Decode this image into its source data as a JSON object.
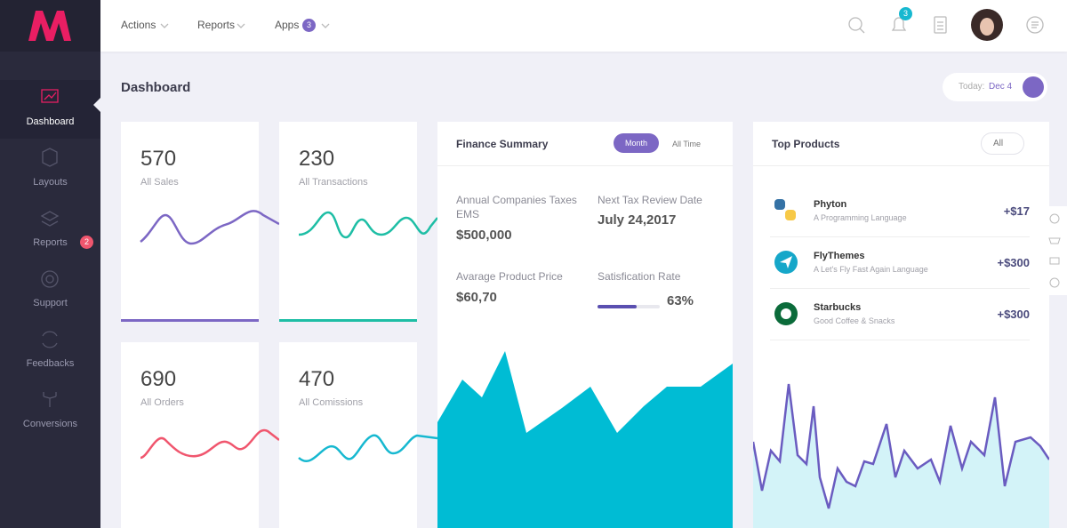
{
  "sidebar": {
    "items": [
      {
        "label": "Dashboard"
      },
      {
        "label": "Layouts"
      },
      {
        "label": "Reports",
        "badge": "2"
      },
      {
        "label": "Support"
      },
      {
        "label": "Feedbacks"
      },
      {
        "label": "Conversions"
      }
    ]
  },
  "topbar": {
    "menu": [
      {
        "label": "Actions"
      },
      {
        "label": "Reports"
      },
      {
        "label": "Apps",
        "badge": "3"
      }
    ],
    "notifications": "3"
  },
  "page": {
    "title": "Dashboard",
    "date_label": "Today:",
    "date": "Dec 4"
  },
  "stats": [
    {
      "value": 570,
      "label": "All Sales"
    },
    {
      "value": 230,
      "label": "All Transactions"
    },
    {
      "value": 690,
      "label": "All Orders"
    },
    {
      "value": 470,
      "label": "All Comissions"
    }
  ],
  "finance": {
    "title": "Finance Summary",
    "tabs": [
      "Month",
      "All Time"
    ],
    "fields": [
      {
        "label": "Annual Companies Taxes EMS",
        "value": "$500,000"
      },
      {
        "label": "Next Tax Review Date",
        "value": "July 24,2017"
      },
      {
        "label": "Avarage Product Price",
        "value": "$60,70"
      }
    ],
    "satisfaction": {
      "label": "Satisfication Rate",
      "rate": {
        "value": 63,
        "label": "63%"
      }
    }
  },
  "products": {
    "title": "Top Products",
    "filter": "All",
    "items": [
      {
        "name": "Phyton",
        "description": "A Programming Language",
        "amount": "+$17"
      },
      {
        "name": "FlyThemes",
        "description": "A Let's Fly Fast Again Language",
        "amount": "+$300"
      },
      {
        "name": "Starbucks",
        "description": "Good Coffee & Snacks",
        "amount": "+$300"
      }
    ]
  }
}
